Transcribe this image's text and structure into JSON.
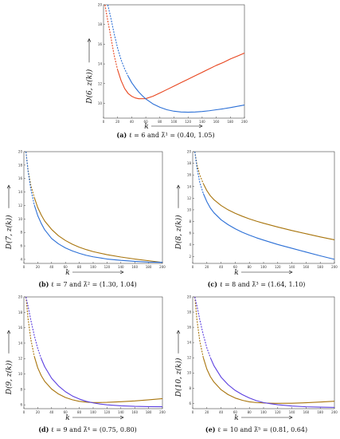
{
  "colors": {
    "red": "#e8451e",
    "blue": "#2b6fd6",
    "purple": "#5b3fe0",
    "olive": "#a8740c",
    "axis": "#444444"
  },
  "chart_data": [
    {
      "type": "line",
      "id": "a",
      "caption": {
        "tag": "(a)",
        "text": "ℓ = 6 and λ̃¹ = (0.40, 1.05)"
      },
      "xlabel": "k",
      "ylabel": "D(6, z(k))",
      "xlim": [
        0,
        200
      ],
      "ylim": [
        8.5,
        20
      ],
      "xticks": [
        0,
        20,
        40,
        60,
        80,
        100,
        120,
        140,
        160,
        180,
        200
      ],
      "yticks": [
        10,
        12,
        14,
        16,
        18,
        20
      ],
      "yticklabels": [
        "10",
        "12",
        "14",
        "16",
        "18",
        "20"
      ],
      "series": [
        {
          "color_key": "red",
          "dashed_until": 20,
          "x": [
            2,
            6,
            10,
            15,
            20,
            25,
            30,
            35,
            40,
            45,
            50,
            60,
            70,
            80,
            90,
            100,
            110,
            120,
            130,
            140,
            150,
            160,
            170,
            180,
            190,
            200
          ],
          "y": [
            20,
            18.4,
            16.9,
            14.9,
            13.4,
            12.3,
            11.5,
            11.0,
            10.72,
            10.55,
            10.47,
            10.48,
            10.72,
            11.05,
            11.4,
            11.75,
            12.1,
            12.45,
            12.8,
            13.15,
            13.5,
            13.85,
            14.15,
            14.5,
            14.8,
            15.1
          ]
        },
        {
          "color_key": "blue",
          "dashed_until": 32,
          "x": [
            6,
            10,
            15,
            20,
            25,
            30,
            35,
            40,
            45,
            50,
            55,
            60,
            70,
            80,
            90,
            100,
            110,
            120,
            130,
            140,
            150,
            160,
            170,
            180,
            190,
            200
          ],
          "y": [
            20,
            18.8,
            17.1,
            15.6,
            14.4,
            13.5,
            12.75,
            12.1,
            11.6,
            11.15,
            10.78,
            10.45,
            9.95,
            9.6,
            9.35,
            9.2,
            9.12,
            9.1,
            9.12,
            9.17,
            9.25,
            9.35,
            9.45,
            9.57,
            9.7,
            9.83
          ]
        }
      ]
    },
    {
      "type": "line",
      "id": "b",
      "caption": {
        "tag": "(b)",
        "text": "ℓ = 7 and λ̃² = (1.30, 1.04)"
      },
      "xlabel": "k",
      "ylabel": "D(7, z(k))",
      "xlim": [
        0,
        200
      ],
      "ylim": [
        3.4,
        20
      ],
      "xticks": [
        0,
        20,
        40,
        60,
        80,
        100,
        120,
        140,
        160,
        180,
        200
      ],
      "yticks": [
        4,
        6,
        8,
        10,
        12,
        14,
        16,
        18,
        20
      ],
      "yticklabels": [
        "4",
        "6",
        "8",
        "10",
        "12",
        "14",
        "16",
        "18",
        "20"
      ],
      "series": [
        {
          "color_key": "olive",
          "dashed_until": 12,
          "x": [
            3,
            6,
            10,
            15,
            20,
            25,
            30,
            40,
            50,
            60,
            70,
            80,
            90,
            100,
            120,
            140,
            160,
            180,
            200
          ],
          "y": [
            20,
            17.3,
            15.0,
            13.2,
            11.7,
            10.6,
            9.7,
            8.45,
            7.5,
            6.8,
            6.25,
            5.8,
            5.45,
            5.15,
            4.7,
            4.35,
            4.05,
            3.8,
            3.55
          ]
        },
        {
          "color_key": "blue",
          "dashed_until": 12,
          "x": [
            3,
            6,
            10,
            15,
            20,
            25,
            30,
            40,
            50,
            60,
            70,
            80,
            90,
            100,
            120,
            140,
            160,
            180,
            200
          ],
          "y": [
            20,
            17.1,
            14.4,
            12.1,
            10.5,
            9.35,
            8.4,
            7.1,
            6.3,
            5.7,
            5.25,
            4.9,
            4.6,
            4.38,
            4.05,
            3.85,
            3.7,
            3.6,
            3.55
          ]
        }
      ]
    },
    {
      "type": "line",
      "id": "c",
      "caption": {
        "tag": "(c)",
        "text": "ℓ = 8 and λ̃³ = (1.64, 1.10)"
      },
      "xlabel": "k",
      "ylabel": "D(8, z(k))",
      "xlim": [
        0,
        200
      ],
      "ylim": [
        0.8,
        20
      ],
      "xticks": [
        0,
        20,
        40,
        60,
        80,
        100,
        120,
        140,
        160,
        180,
        200
      ],
      "yticks": [
        2,
        4,
        6,
        8,
        10,
        12,
        14,
        16,
        18,
        20
      ],
      "yticklabels": [
        "2",
        "4",
        "6",
        "8",
        "10",
        "12",
        "14",
        "16",
        "18",
        "20"
      ],
      "series": [
        {
          "color_key": "olive",
          "dashed_until": 12,
          "x": [
            3,
            6,
            10,
            15,
            20,
            25,
            30,
            40,
            50,
            60,
            70,
            80,
            90,
            100,
            120,
            140,
            160,
            180,
            200
          ],
          "y": [
            20,
            17.8,
            16.0,
            14.5,
            13.3,
            12.4,
            11.75,
            10.75,
            10.0,
            9.4,
            8.9,
            8.45,
            8.05,
            7.7,
            7.05,
            6.45,
            5.9,
            5.35,
            4.85
          ]
        },
        {
          "color_key": "blue",
          "dashed_until": 12,
          "x": [
            3,
            6,
            10,
            15,
            20,
            25,
            30,
            40,
            50,
            60,
            70,
            80,
            90,
            100,
            120,
            140,
            160,
            180,
            200
          ],
          "y": [
            20,
            17.2,
            14.7,
            12.8,
            11.4,
            10.3,
            9.5,
            8.3,
            7.45,
            6.75,
            6.15,
            5.65,
            5.2,
            4.8,
            4.05,
            3.4,
            2.75,
            2.1,
            1.5
          ]
        }
      ]
    },
    {
      "type": "line",
      "id": "d",
      "caption": {
        "tag": "(d)",
        "text": "ℓ = 9 and λ̃⁴ = (0.75, 0.80)"
      },
      "xlabel": "k",
      "ylabel": "D(9, z(k))",
      "xlim": [
        0,
        200
      ],
      "ylim": [
        5.5,
        20
      ],
      "xticks": [
        0,
        20,
        40,
        60,
        80,
        100,
        120,
        140,
        160,
        180,
        200
      ],
      "yticks": [
        6,
        8,
        10,
        12,
        14,
        16,
        18,
        20
      ],
      "yticklabels": [
        "6",
        "8",
        "10",
        "12",
        "14",
        "16",
        "18",
        "20"
      ],
      "series": [
        {
          "color_key": "olive",
          "dashed_until": 12,
          "x": [
            3,
            6,
            10,
            15,
            20,
            25,
            30,
            40,
            50,
            60,
            70,
            80,
            90,
            100,
            110,
            120,
            140,
            160,
            180,
            200
          ],
          "y": [
            20,
            17.2,
            14.5,
            12.3,
            10.8,
            9.8,
            9.05,
            8.05,
            7.4,
            6.95,
            6.65,
            6.45,
            6.35,
            6.3,
            6.3,
            6.32,
            6.4,
            6.5,
            6.65,
            6.8
          ]
        },
        {
          "color_key": "purple",
          "dashed_until": 24,
          "x": [
            3,
            6,
            10,
            15,
            20,
            25,
            30,
            40,
            50,
            60,
            70,
            80,
            90,
            100,
            110,
            120,
            140,
            160,
            180,
            200
          ],
          "y": [
            20,
            18.8,
            17.0,
            15.0,
            13.3,
            12.0,
            10.95,
            9.45,
            8.45,
            7.7,
            7.15,
            6.75,
            6.45,
            6.25,
            6.1,
            6.0,
            5.87,
            5.8,
            5.77,
            5.75
          ]
        }
      ]
    },
    {
      "type": "line",
      "id": "e",
      "caption": {
        "tag": "(e)",
        "text": "ℓ = 10 and λ̃⁵ = (0.81, 0.64)"
      },
      "xlabel": "k",
      "ylabel": "D(10, z(k))",
      "xlim": [
        0,
        200
      ],
      "ylim": [
        5.3,
        20
      ],
      "xticks": [
        0,
        20,
        40,
        60,
        80,
        100,
        120,
        140,
        160,
        180,
        200
      ],
      "yticks": [
        6,
        8,
        10,
        12,
        14,
        16,
        18,
        20
      ],
      "yticklabels": [
        "6",
        "8",
        "10",
        "12",
        "14",
        "16",
        "18",
        "20"
      ],
      "series": [
        {
          "color_key": "olive",
          "dashed_until": 12,
          "x": [
            3,
            6,
            10,
            15,
            20,
            25,
            30,
            40,
            50,
            60,
            70,
            80,
            90,
            100,
            110,
            120,
            140,
            160,
            180,
            200
          ],
          "y": [
            20,
            17.0,
            14.2,
            12.0,
            10.5,
            9.5,
            8.8,
            7.8,
            7.15,
            6.7,
            6.4,
            6.2,
            6.1,
            6.05,
            6.02,
            6.0,
            6.02,
            6.08,
            6.17,
            6.28
          ]
        },
        {
          "color_key": "purple",
          "dashed_until": 24,
          "x": [
            3,
            6,
            10,
            15,
            20,
            25,
            30,
            40,
            50,
            60,
            70,
            80,
            90,
            100,
            110,
            120,
            140,
            160,
            180,
            200
          ],
          "y": [
            20,
            18.8,
            17.0,
            15.0,
            13.3,
            12.0,
            10.95,
            9.45,
            8.45,
            7.7,
            7.15,
            6.7,
            6.35,
            6.1,
            5.95,
            5.82,
            5.65,
            5.55,
            5.5,
            5.47
          ]
        }
      ]
    }
  ]
}
